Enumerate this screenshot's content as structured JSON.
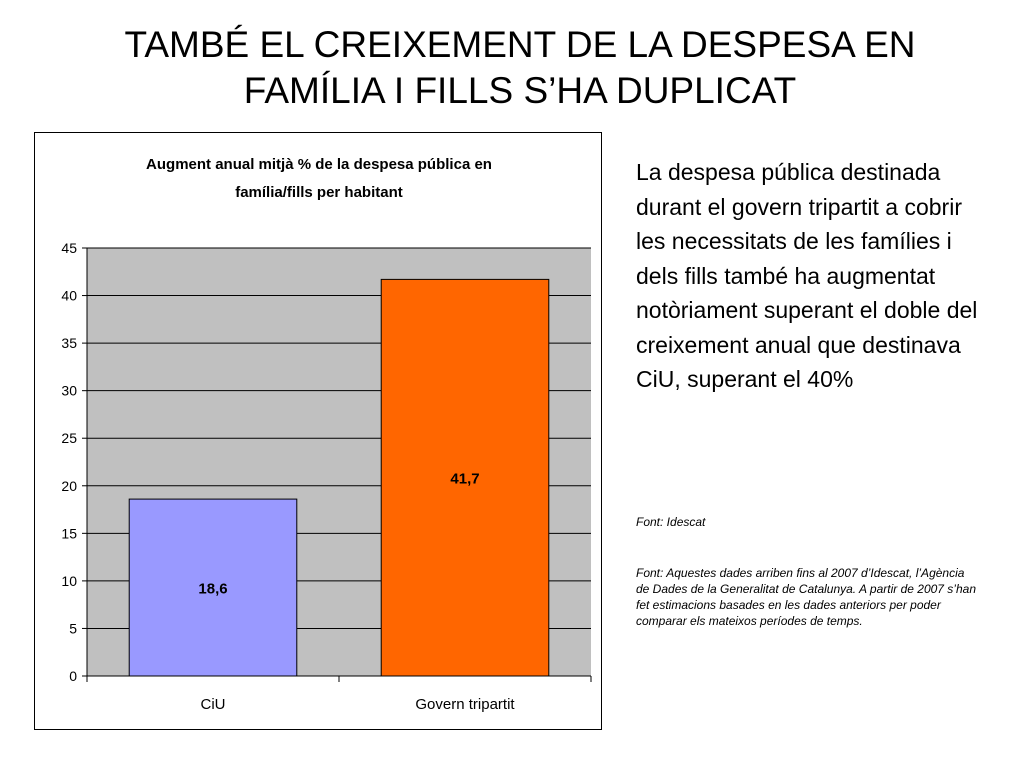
{
  "slide": {
    "title_line1": "TAMBÉ EL CREIXEMENT DE LA DESPESA EN",
    "title_line2": "FAMÍLIA I FILLS S’HA DUPLICAT",
    "body_text": "La despesa pública destinada durant el govern tripartit a cobrir les necessitats de les famílies i dels fills també ha augmentat notòriament superant el doble del creixement anual que destinava CiU, superant el 40%",
    "source_1": "Font: Idescat",
    "source_2": "Font: Aquestes dades arriben fins al 2007 d’Idescat, l’Agència de Dades de la Generalitat de Catalunya. A partir de 2007 s’han fet estimacions basades en les dades anteriors per poder comparar els mateixos períodes de temps."
  },
  "chart_data": {
    "type": "bar",
    "title_line1": "Augment anual mitjà % de la despesa pública en",
    "title_line2": "família/fills per habitant",
    "categories": [
      "CiU",
      "Govern tripartit"
    ],
    "values": [
      18.6,
      41.7
    ],
    "data_labels": [
      "18,6",
      "41,7"
    ],
    "bar_colors": [
      "#9999ff",
      "#ff6600"
    ],
    "ylim": [
      0,
      45
    ],
    "yticks": [
      0,
      5,
      10,
      15,
      20,
      25,
      30,
      35,
      40,
      45
    ],
    "grid": true,
    "plot_background": "#c0c0c0",
    "legend": "none"
  }
}
